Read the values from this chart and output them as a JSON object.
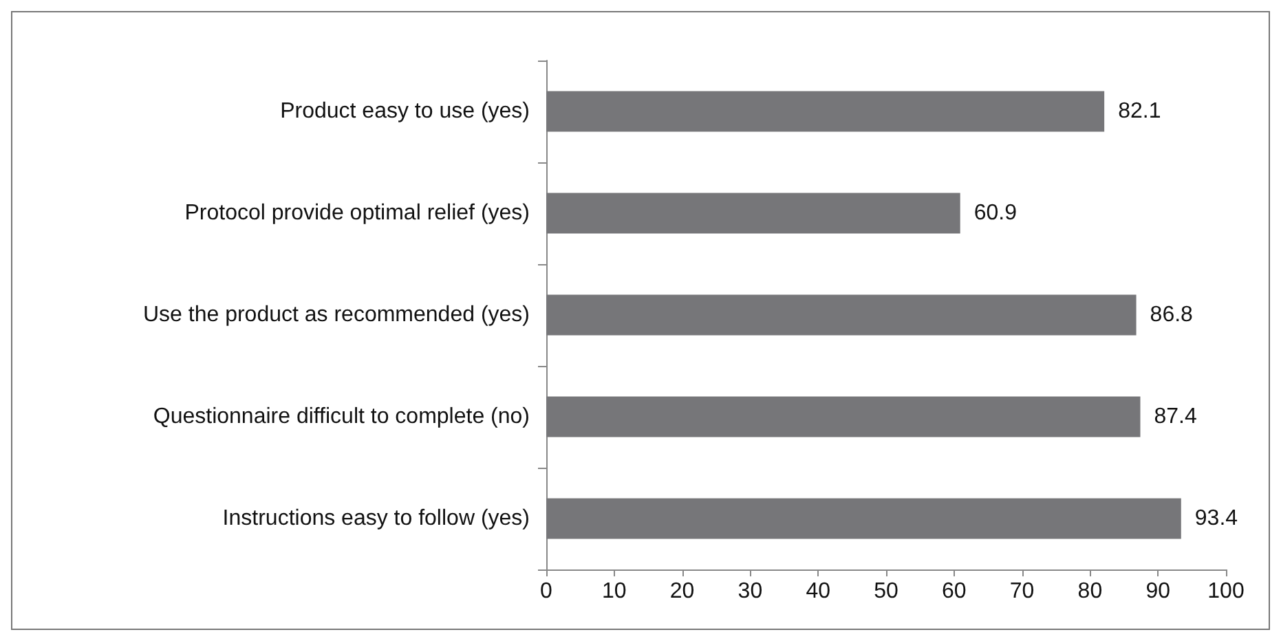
{
  "chart_data": {
    "type": "bar",
    "orientation": "horizontal",
    "categories": [
      "Product easy to use (yes)",
      "Protocol provide optimal relief (yes)",
      "Use the product as recommended (yes)",
      "Questionnaire difficult to complete (no)",
      "Instructions easy to follow (yes)"
    ],
    "values": [
      82.1,
      60.9,
      86.8,
      87.4,
      93.4
    ],
    "color": "#767679",
    "xlim": [
      0,
      100
    ],
    "xticks": [
      0,
      10,
      20,
      30,
      40,
      50,
      60,
      70,
      80,
      90,
      100
    ],
    "data_labels": true
  }
}
